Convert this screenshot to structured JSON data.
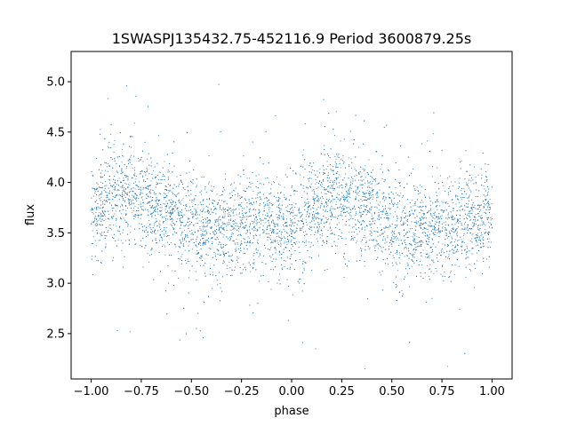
{
  "chart_data": {
    "type": "scatter",
    "title": "1SWASPJ135432.75-452116.9 Period 3600879.25s",
    "xlabel": "phase",
    "ylabel": "flux",
    "xlim": [
      -1.1,
      1.1
    ],
    "ylim": [
      2.05,
      5.3
    ],
    "xticks": [
      -1.0,
      -0.75,
      -0.5,
      -0.25,
      0.0,
      0.25,
      0.5,
      0.75,
      1.0
    ],
    "xtick_labels": [
      "−1.00",
      "−0.75",
      "−0.50",
      "−0.25",
      "0.00",
      "0.25",
      "0.50",
      "0.75",
      "1.00"
    ],
    "yticks": [
      2.5,
      3.0,
      3.5,
      4.0,
      4.5,
      5.0
    ],
    "ytick_labels": [
      "2.5",
      "3.0",
      "3.5",
      "4.0",
      "4.5",
      "5.0"
    ],
    "grid": false,
    "legend": "none",
    "marker_color": "#1f77b4",
    "series": [
      {
        "x": [
          -1.0,
          -0.9,
          -0.8,
          -0.75,
          -0.7,
          -0.6,
          -0.5,
          -0.4,
          -0.3,
          -0.2,
          -0.1,
          0.0,
          0.1,
          0.2,
          0.25,
          0.3,
          0.4,
          0.5,
          0.6,
          0.7,
          0.8,
          0.9,
          1.0
        ],
        "y": [
          3.7,
          3.8,
          3.88,
          3.85,
          3.8,
          3.68,
          3.55,
          3.52,
          3.55,
          3.6,
          3.58,
          3.55,
          3.72,
          3.85,
          3.87,
          3.82,
          3.72,
          3.58,
          3.52,
          3.55,
          3.6,
          3.62,
          3.65
        ]
      }
    ]
  }
}
